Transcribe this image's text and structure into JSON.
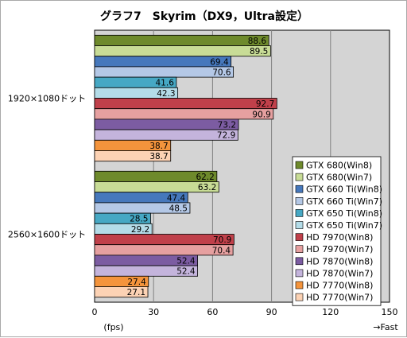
{
  "chart_data": {
    "type": "bar",
    "orientation": "horizontal",
    "title": "グラフ7　Skyrim（DX9，Ultra設定）",
    "xlabel": "(fps)",
    "x_direction_note": "→Fast",
    "xlim": [
      0,
      150
    ],
    "xticks": [
      "0",
      "30",
      "60",
      "90",
      "120",
      "150"
    ],
    "grid": true,
    "legend_position": "right",
    "categories": [
      "1920×1080ドット",
      "2560×1600ドット"
    ],
    "series": [
      {
        "name": "GTX 680(Win8)",
        "values": [
          88.6,
          62.2
        ],
        "color": "#6e8a2c"
      },
      {
        "name": "GTX 680(Win7)",
        "values": [
          89.5,
          63.2
        ],
        "color": "#c8dc96"
      },
      {
        "name": "GTX 660 Ti(Win8)",
        "values": [
          69.4,
          47.4
        ],
        "color": "#4678bc"
      },
      {
        "name": "GTX 660 Ti(Win7)",
        "values": [
          70.6,
          48.5
        ],
        "color": "#b4c8e6"
      },
      {
        "name": "GTX 650 Ti(Win8)",
        "values": [
          41.6,
          28.5
        ],
        "color": "#46a8c4"
      },
      {
        "name": "GTX 650 Ti(Win7)",
        "values": [
          42.3,
          29.2
        ],
        "color": "#b4dce8"
      },
      {
        "name": "HD 7970(Win8)",
        "values": [
          92.7,
          70.9
        ],
        "color": "#c0404a"
      },
      {
        "name": "HD 7970(Win7)",
        "values": [
          90.9,
          70.4
        ],
        "color": "#e6a0a0"
      },
      {
        "name": "HD 7870(Win8)",
        "values": [
          73.2,
          52.4
        ],
        "color": "#7c5ca2"
      },
      {
        "name": "HD 7870(Win7)",
        "values": [
          72.9,
          52.4
        ],
        "color": "#c4b4dc"
      },
      {
        "name": "HD 7770(Win8)",
        "values": [
          38.7,
          27.4
        ],
        "color": "#f4943c"
      },
      {
        "name": "HD 7770(Win7)",
        "values": [
          38.7,
          27.1
        ],
        "color": "#fcd2b4"
      }
    ]
  }
}
